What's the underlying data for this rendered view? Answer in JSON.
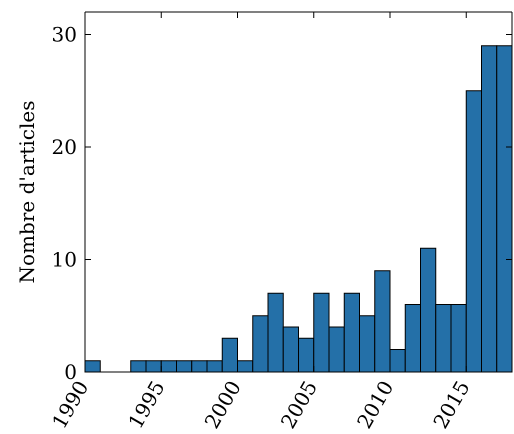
{
  "chart_data": {
    "type": "bar",
    "title": "",
    "xlabel": "",
    "ylabel": "Nombre d'articles",
    "bar_color": "#2470a8",
    "bar_edge_color": "#000000",
    "xlim": [
      1990,
      2018
    ],
    "ylim": [
      0,
      32
    ],
    "grid": false,
    "x_ticks": [
      1990,
      1995,
      2000,
      2005,
      2010,
      2015
    ],
    "y_ticks": [
      0,
      10,
      20,
      30
    ],
    "x": [
      1991,
      1992,
      1993,
      1994,
      1995,
      1996,
      1997,
      1998,
      1999,
      2000,
      2001,
      2002,
      2003,
      2004,
      2005,
      2006,
      2007,
      2008,
      2009,
      2010,
      2011,
      2012,
      2013,
      2014,
      2015,
      2016,
      2017,
      2018
    ],
    "values": [
      1,
      0,
      0,
      1,
      1,
      1,
      1,
      1,
      1,
      3,
      1,
      5,
      7,
      4,
      3,
      7,
      4,
      7,
      5,
      9,
      2,
      6,
      11,
      6,
      6,
      25,
      29,
      29
    ]
  }
}
